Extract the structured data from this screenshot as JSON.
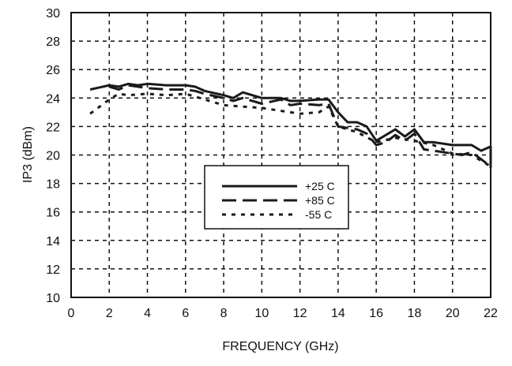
{
  "chart_data": {
    "type": "line",
    "title": "",
    "xlabel": "FREQUENCY (GHz)",
    "ylabel": "IP3 (dBm)",
    "xlim": [
      0,
      22
    ],
    "ylim": [
      10,
      30
    ],
    "xticks": [
      0,
      2,
      4,
      6,
      8,
      10,
      12,
      14,
      16,
      18,
      20,
      22
    ],
    "yticks": [
      10,
      12,
      14,
      16,
      18,
      20,
      22,
      24,
      26,
      28,
      30
    ],
    "grid": true,
    "legend_position": "center-bottom",
    "series": [
      {
        "name": "+25 C",
        "style": "solid",
        "x": [
          1,
          2,
          2.5,
          3,
          3.5,
          4,
          5,
          6,
          6.5,
          7,
          8,
          8.5,
          9,
          10,
          11,
          11.5,
          12,
          13,
          13.5,
          14,
          14.5,
          15,
          15.5,
          16,
          17,
          17.5,
          18,
          18.5,
          19,
          20,
          21,
          21.5,
          22,
          22
        ],
        "y": [
          24.6,
          24.9,
          24.8,
          25.0,
          24.9,
          25.0,
          24.9,
          24.9,
          24.8,
          24.5,
          24.2,
          24.0,
          24.4,
          24.0,
          24.0,
          23.8,
          23.8,
          23.9,
          23.9,
          23.0,
          22.3,
          22.3,
          22.0,
          21.0,
          21.8,
          21.3,
          21.8,
          20.9,
          20.9,
          20.7,
          20.7,
          20.3,
          20.6,
          19.1
        ]
      },
      {
        "name": "+85 C",
        "style": "dashed",
        "x": [
          2,
          2.5,
          3,
          4,
          5,
          6,
          6.5,
          7,
          8,
          8.5,
          9,
          10,
          11,
          11.5,
          12,
          13,
          13.5,
          14,
          15,
          15.5,
          16,
          16.5,
          17,
          17.5,
          18,
          18.5,
          20,
          20.5,
          21,
          22
        ],
        "y": [
          24.8,
          24.6,
          24.9,
          24.7,
          24.6,
          24.6,
          24.5,
          24.3,
          24.0,
          23.8,
          24.0,
          23.6,
          23.9,
          23.5,
          23.6,
          23.5,
          23.6,
          22.0,
          21.8,
          21.5,
          20.7,
          20.9,
          21.4,
          21.0,
          21.5,
          20.4,
          20.1,
          20.0,
          20.2,
          19.2
        ]
      },
      {
        "name": "-55 C",
        "style": "dotted",
        "x": [
          1,
          2,
          2.5,
          3,
          4,
          5,
          6,
          6.5,
          7,
          8,
          9,
          10,
          11,
          12,
          13,
          13.5,
          14,
          15,
          16,
          17,
          18,
          19,
          20,
          21,
          22
        ],
        "y": [
          22.9,
          23.9,
          24.3,
          24.2,
          24.3,
          24.2,
          24.3,
          24.1,
          23.9,
          23.5,
          23.4,
          23.3,
          23.1,
          22.9,
          23.0,
          23.4,
          22.0,
          21.6,
          20.9,
          21.2,
          21.0,
          20.7,
          20.1,
          20.0,
          19.2
        ]
      }
    ]
  }
}
